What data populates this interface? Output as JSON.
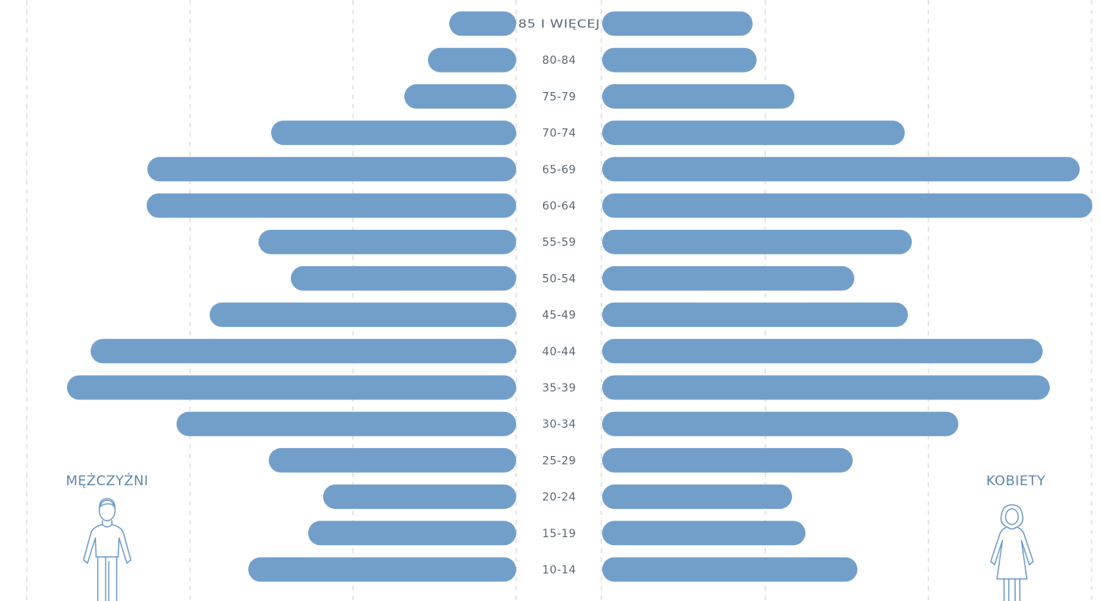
{
  "chart_data": {
    "type": "bar",
    "categories": [
      "85 I WIĘCEJ",
      "80-84",
      "75-79",
      "70-74",
      "65-69",
      "60-64",
      "55-59",
      "50-54",
      "45-49",
      "40-44",
      "35-39",
      "30-34",
      "25-29",
      "20-24",
      "15-19",
      "10-14"
    ],
    "series": [
      {
        "name": "MĘŻCZYŹNI",
        "values": [
          85,
          112,
          142,
          311,
          468,
          469,
          327,
          286,
          389,
          540,
          570,
          431,
          314,
          245,
          264,
          340
        ]
      },
      {
        "name": "KOBIETY",
        "values": [
          191,
          196,
          244,
          384,
          606,
          622,
          393,
          320,
          388,
          559,
          568,
          452,
          318,
          241,
          258,
          324
        ]
      }
    ],
    "xlim": [
      0,
      640
    ],
    "grid": true,
    "colors": {
      "bar": "#729fca",
      "grid": "#d5d5d5",
      "label": "#5b6670",
      "side_label": "#5e86ad",
      "icon": "#6f9ccb"
    }
  },
  "labels": {
    "men": "MĘŻCZYŹNI",
    "women": "KOBIETY"
  },
  "icons": {
    "men": "man-icon",
    "women": "woman-icon"
  }
}
